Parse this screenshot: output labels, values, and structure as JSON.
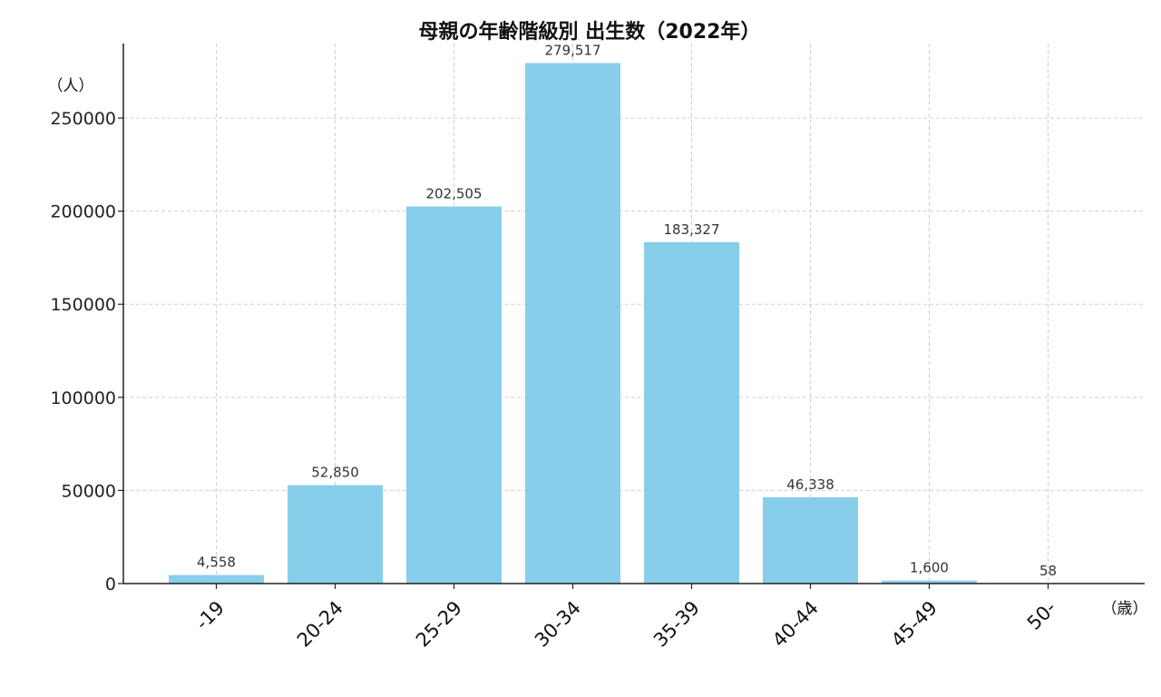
{
  "chart_data": {
    "type": "bar",
    "title": "母親の年齢階級別 出生数（2022年）",
    "ylabel": "（人）",
    "xlabel": "（歳）",
    "categories": [
      "-19",
      "20-24",
      "25-29",
      "30-34",
      "35-39",
      "40-44",
      "45-49",
      "50-"
    ],
    "values": [
      4558,
      52850,
      202505,
      279517,
      183327,
      46338,
      1600,
      58
    ],
    "value_labels": [
      "4,558",
      "52,850",
      "202,505",
      "279,517",
      "183,327",
      "46,338",
      "1,600",
      "58"
    ],
    "ylim": [
      0,
      290000
    ],
    "yticks": [
      0,
      50000,
      100000,
      150000,
      200000,
      250000
    ],
    "ytick_labels": [
      "0",
      "50000",
      "100000",
      "150000",
      "200000",
      "250000"
    ],
    "grid": true,
    "bar_color": "#87ceeb"
  }
}
